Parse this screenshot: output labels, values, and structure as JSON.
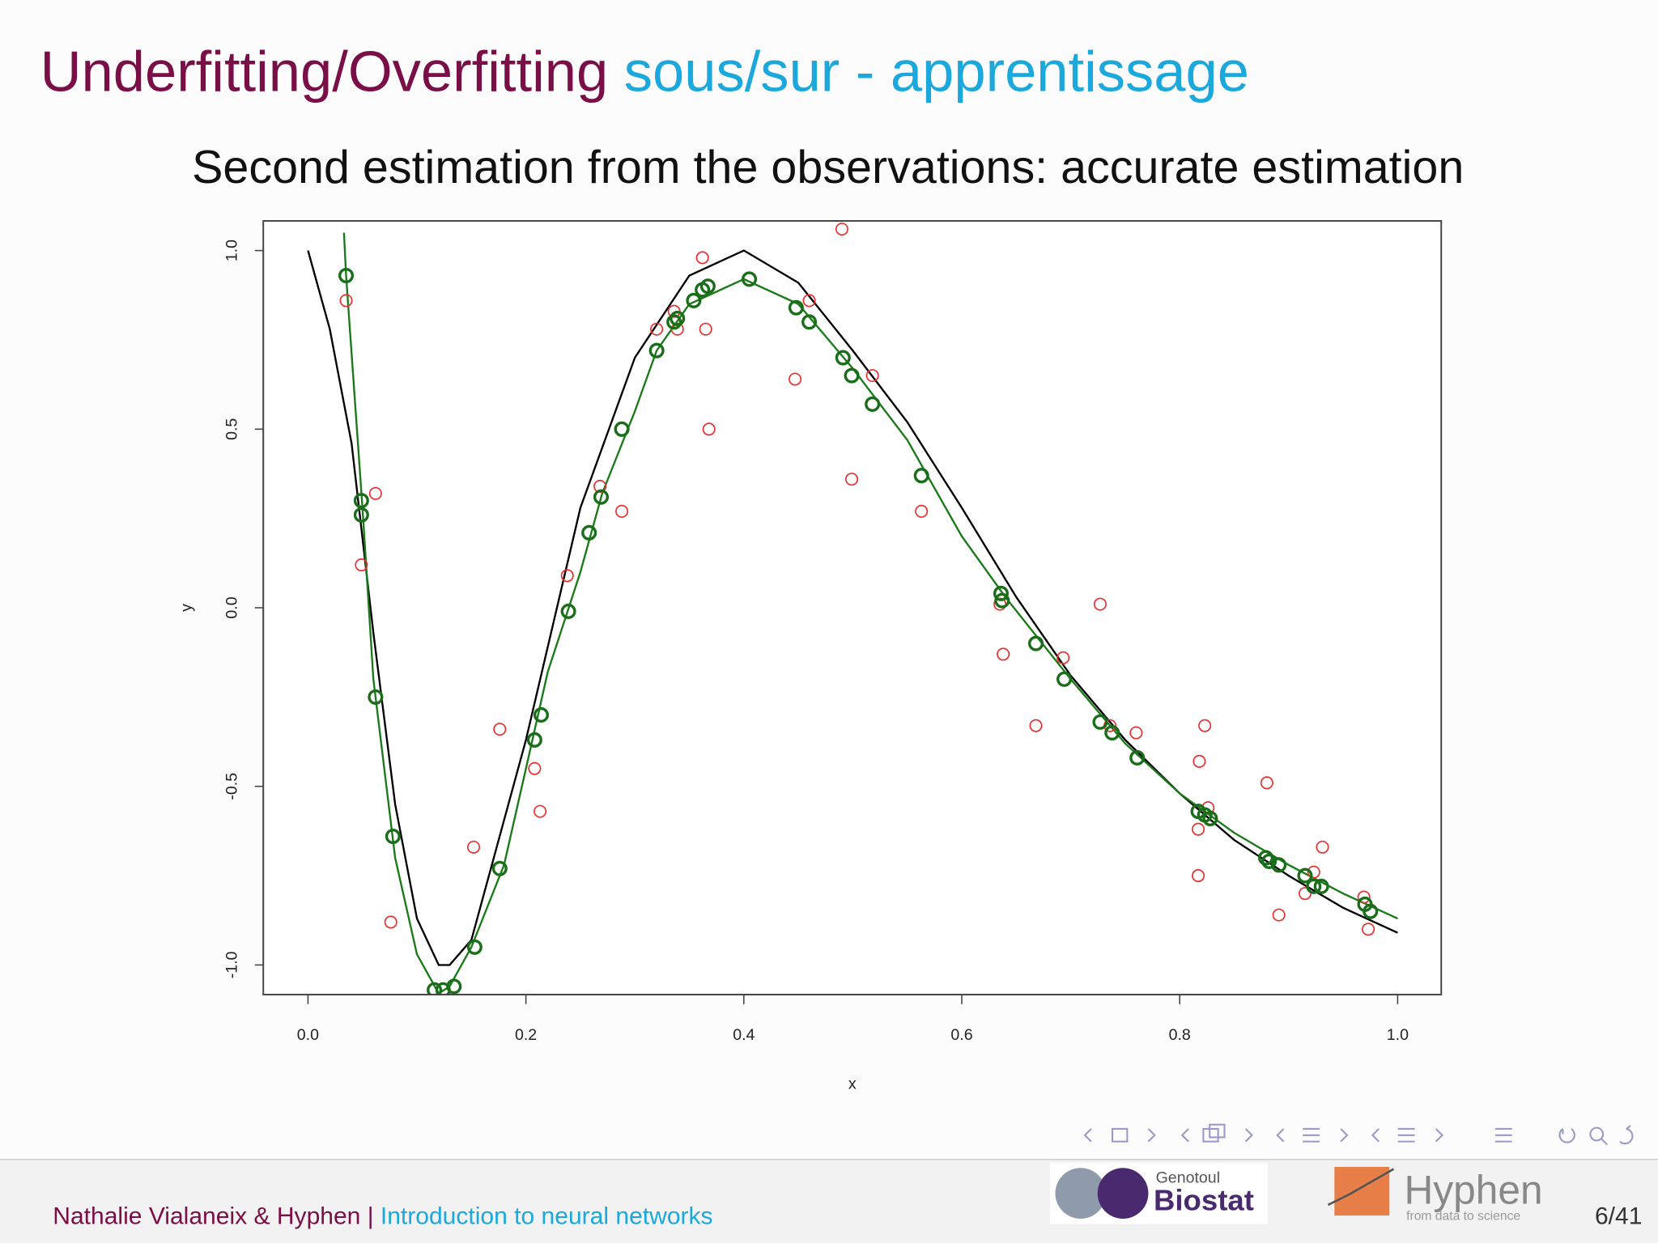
{
  "header": {
    "title": "Underfitting/Overfitting",
    "subtitle": "sous/sur - apprentissage"
  },
  "chart_data": {
    "type": "scatter",
    "title": "Second estimation from the observations: accurate estimation",
    "x_label": "x",
    "y_label": "y",
    "xlim": [
      -0.041,
      1.04
    ],
    "ylim": [
      -1.083,
      1.083
    ],
    "xticks": [
      {
        "value": 0,
        "label": "0.0"
      },
      0.2,
      0.4,
      0.6,
      0.8,
      {
        "value": 1,
        "label": "1.0"
      }
    ],
    "yticks": [
      {
        "value": -1,
        "label": "-1.0"
      },
      -0.5,
      {
        "value": 0,
        "label": "0.0"
      },
      0.5,
      {
        "value": 1,
        "label": "1.0"
      }
    ],
    "series": [
      {
        "type": "line",
        "color": "#000000",
        "x": [
          0,
          0.02,
          0.04,
          0.06,
          0.08,
          0.1,
          0.12,
          0.13,
          0.15,
          0.2,
          0.25,
          0.3,
          0.35,
          0.4,
          0.45,
          0.5,
          0.55,
          0.6,
          0.65,
          0.7,
          0.75,
          0.8,
          0.85,
          0.9,
          0.95,
          1.0
        ],
        "values": [
          1.0,
          0.78,
          0.46,
          -0.07,
          -0.55,
          -0.87,
          -1.0,
          -1.0,
          -0.93,
          -0.37,
          0.28,
          0.7,
          0.93,
          1.0,
          0.91,
          0.72,
          0.52,
          0.28,
          0.03,
          -0.19,
          -0.37,
          -0.52,
          -0.65,
          -0.75,
          -0.84,
          -0.91
        ]
      },
      {
        "type": "line",
        "color": "#1a7a1a",
        "x": [
          0.033,
          0.035,
          0.05,
          0.06,
          0.08,
          0.1,
          0.12,
          0.13,
          0.15,
          0.18,
          0.2,
          0.22,
          0.25,
          0.27,
          0.3,
          0.32,
          0.35,
          0.4,
          0.45,
          0.5,
          0.55,
          0.6,
          0.64,
          0.7,
          0.75,
          0.8,
          0.85,
          0.9,
          0.95,
          1.0
        ],
        "values": [
          1.05,
          0.93,
          0.28,
          -0.2,
          -0.7,
          -0.97,
          -1.08,
          -1.06,
          -0.95,
          -0.72,
          -0.45,
          -0.18,
          0.1,
          0.32,
          0.55,
          0.72,
          0.85,
          0.92,
          0.85,
          0.67,
          0.47,
          0.2,
          0.03,
          -0.2,
          -0.38,
          -0.52,
          -0.63,
          -0.72,
          -0.8,
          -0.87
        ]
      },
      {
        "type": "scatter",
        "color": "#e83030",
        "x": [
          0.035,
          0.062,
          0.049,
          0.076,
          0.152,
          0.176,
          0.208,
          0.213,
          0.238,
          0.268,
          0.288,
          0.32,
          0.336,
          0.339,
          0.362,
          0.365,
          0.368,
          0.447,
          0.46,
          0.49,
          0.499,
          0.518,
          0.563,
          0.635,
          0.638,
          0.668,
          0.693,
          0.727,
          0.736,
          0.76,
          0.817,
          0.817,
          0.818,
          0.823,
          0.826,
          0.88,
          0.891,
          0.915,
          0.923,
          0.931,
          0.969,
          0.973
        ],
        "values": [
          0.86,
          0.32,
          0.12,
          -0.88,
          -0.67,
          -0.34,
          -0.45,
          -0.57,
          0.09,
          0.34,
          0.27,
          0.78,
          0.83,
          0.78,
          0.98,
          0.78,
          0.5,
          0.64,
          0.86,
          1.06,
          0.36,
          0.65,
          0.27,
          0.01,
          -0.13,
          -0.33,
          -0.14,
          0.01,
          -0.33,
          -0.35,
          -0.62,
          -0.75,
          -0.43,
          -0.33,
          -0.56,
          -0.49,
          -0.86,
          -0.8,
          -0.74,
          -0.67,
          -0.81,
          -0.9
        ]
      },
      {
        "type": "scatter",
        "color": "#1a6e1a",
        "bold": true,
        "x": [
          0.035,
          0.049,
          0.049,
          0.062,
          0.078,
          0.116,
          0.124,
          0.134,
          0.153,
          0.176,
          0.208,
          0.214,
          0.239,
          0.258,
          0.269,
          0.288,
          0.32,
          0.336,
          0.339,
          0.354,
          0.362,
          0.367,
          0.405,
          0.448,
          0.46,
          0.491,
          0.499,
          0.518,
          0.563,
          0.636,
          0.637,
          0.668,
          0.694,
          0.727,
          0.738,
          0.761,
          0.817,
          0.823,
          0.828,
          0.879,
          0.882,
          0.891,
          0.915,
          0.923,
          0.93,
          0.97,
          0.975
        ],
        "values": [
          0.93,
          0.3,
          0.26,
          -0.25,
          -0.64,
          -1.07,
          -1.07,
          -1.06,
          -0.95,
          -0.73,
          -0.37,
          -0.3,
          -0.01,
          0.21,
          0.31,
          0.5,
          0.72,
          0.8,
          0.81,
          0.86,
          0.89,
          0.9,
          0.92,
          0.84,
          0.8,
          0.7,
          0.65,
          0.57,
          0.37,
          0.04,
          0.02,
          -0.1,
          -0.2,
          -0.32,
          -0.35,
          -0.42,
          -0.57,
          -0.58,
          -0.59,
          -0.7,
          -0.71,
          -0.72,
          -0.75,
          -0.78,
          -0.78,
          -0.83,
          -0.85
        ]
      }
    ]
  },
  "footer": {
    "authors": "Nathalie Vialaneix & Hyphen",
    "separator": "|",
    "talk": "Introduction to neural networks",
    "page": "6/41",
    "logo_genotoul": "Genotoul",
    "logo_biostat": "Biostat",
    "logo_hyphen": "Hyphen",
    "logo_hyphen_tagline": "from data to science"
  }
}
